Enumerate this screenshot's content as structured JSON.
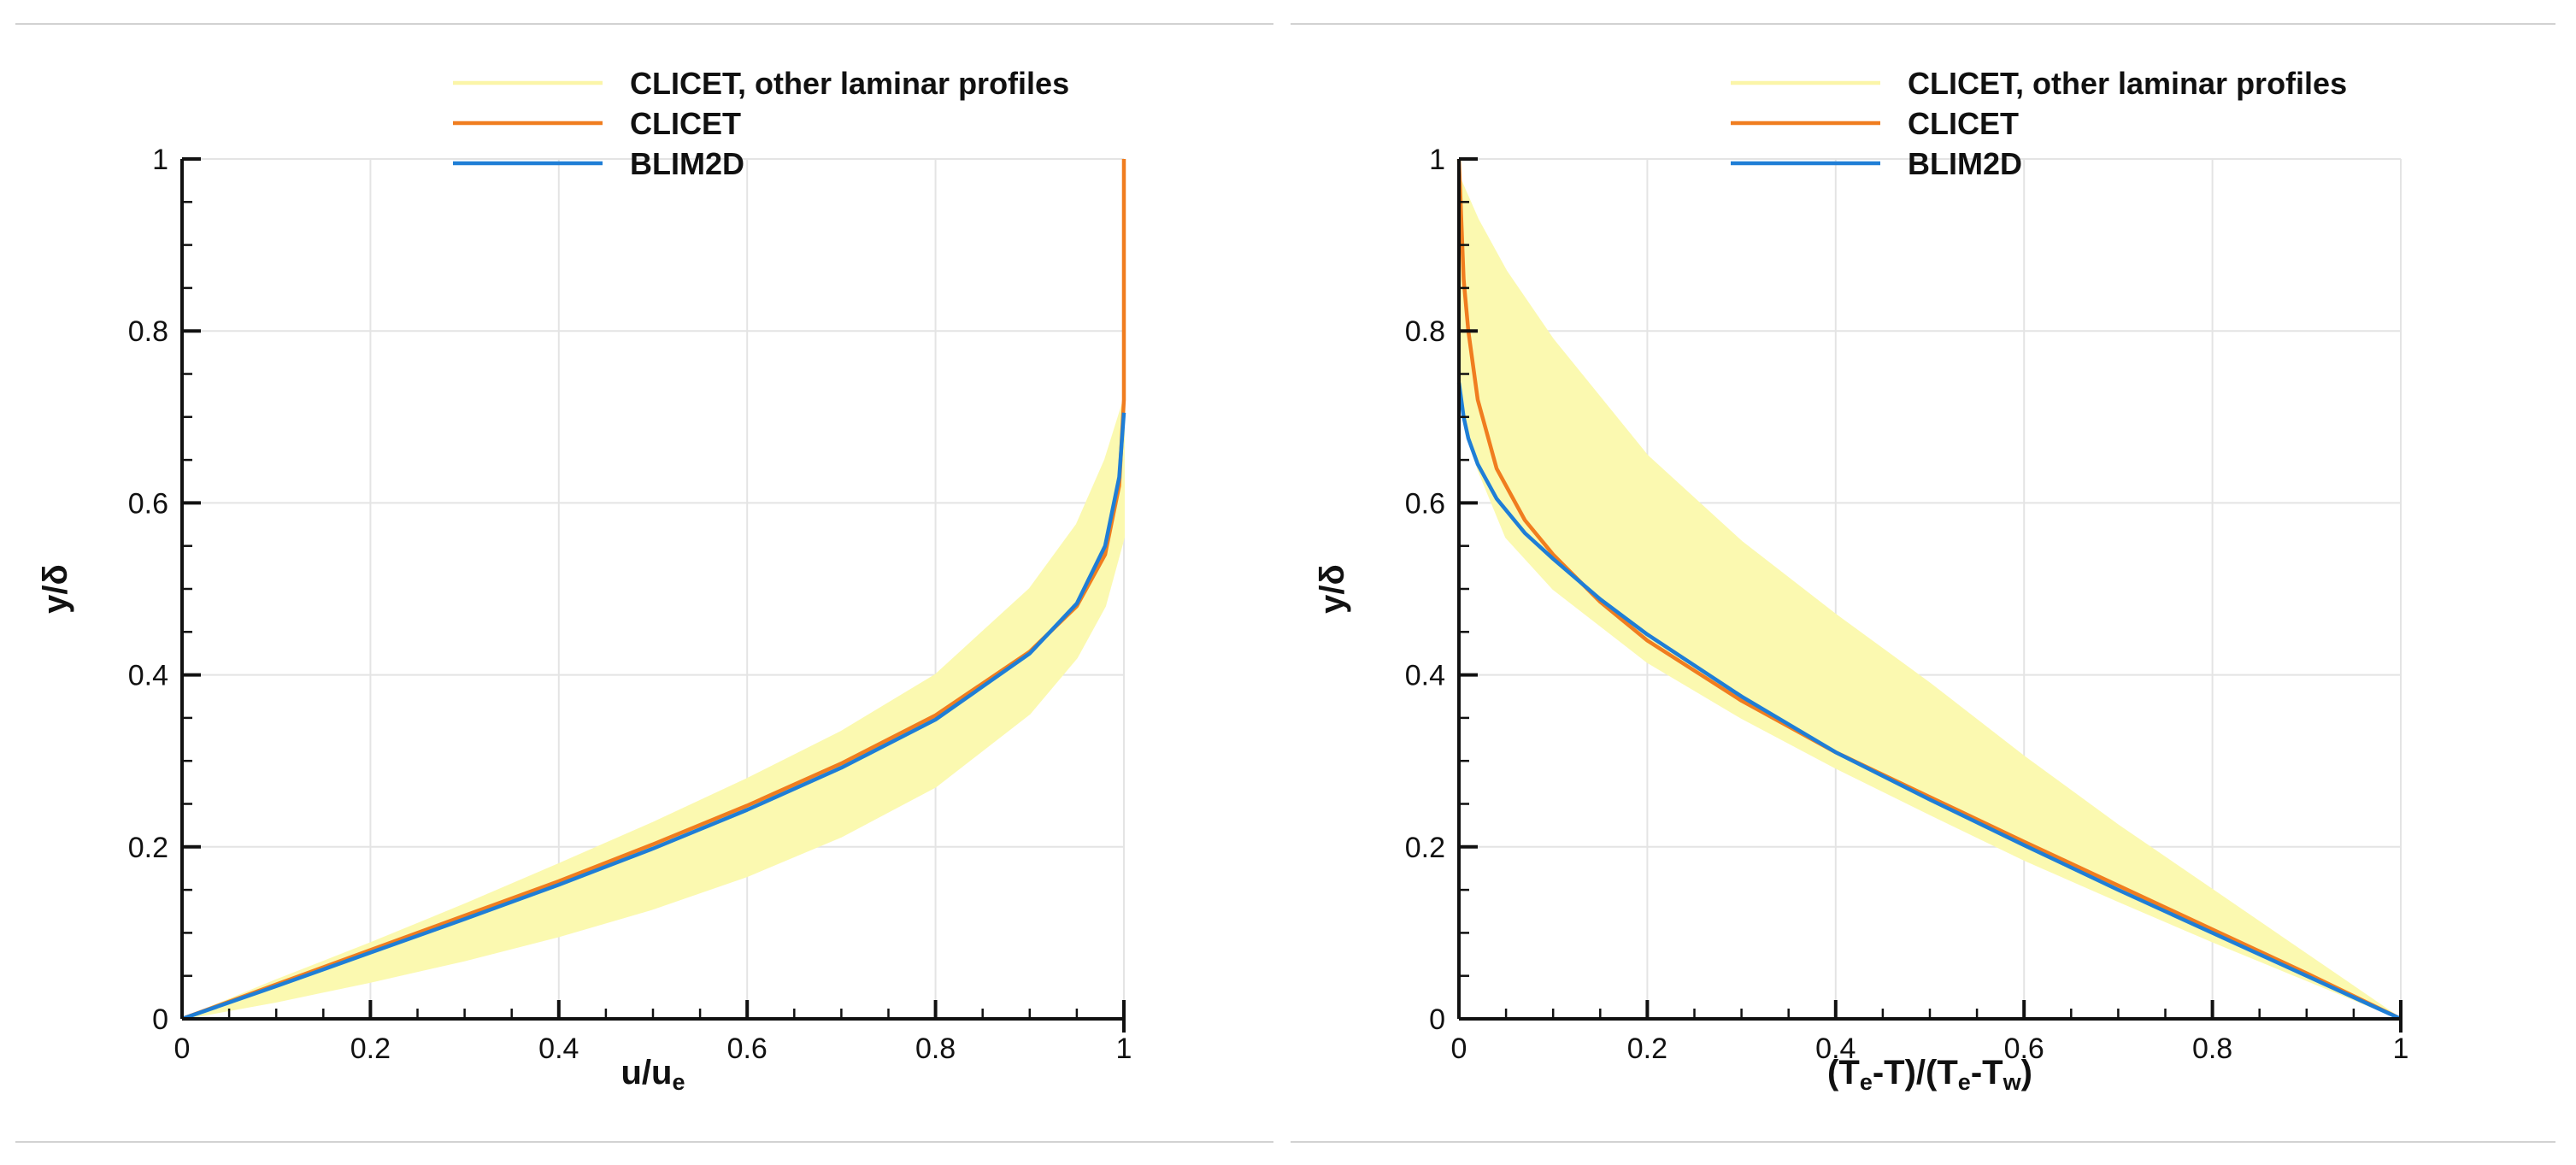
{
  "chart_data": [
    {
      "id": "velocity",
      "type": "line",
      "xlabel": "u/u",
      "xlabel_sub": "e",
      "ylabel": "y/δ",
      "xlim": [
        0,
        1
      ],
      "ylim": [
        0,
        1
      ],
      "xticks": [
        0,
        0.2,
        0.4,
        0.6,
        0.8,
        1
      ],
      "yticks": [
        0,
        0.2,
        0.4,
        0.6,
        0.8,
        1
      ],
      "xtick_labels": [
        "0",
        "0.2",
        "0.4",
        "0.6",
        "0.8",
        "1"
      ],
      "ytick_labels": [
        "0",
        "0.2",
        "0.4",
        "0.6",
        "0.8",
        "1"
      ],
      "grid": true,
      "legend": [
        {
          "label": "CLICET, other laminar profiles",
          "color": "#fbf5a8"
        },
        {
          "label": "CLICET",
          "color": "#f07d1f"
        },
        {
          "label": "BLIM2D",
          "color": "#1f7ed6"
        }
      ],
      "band": {
        "name": "CLICET, other laminar profiles",
        "color": "#fbf9b0",
        "upper": [
          [
            0,
            0
          ],
          [
            0.1,
            0.045
          ],
          [
            0.2,
            0.088
          ],
          [
            0.3,
            0.133
          ],
          [
            0.4,
            0.18
          ],
          [
            0.5,
            0.228
          ],
          [
            0.6,
            0.279
          ],
          [
            0.7,
            0.334
          ],
          [
            0.8,
            0.4
          ],
          [
            0.9,
            0.5
          ],
          [
            0.95,
            0.575
          ],
          [
            0.98,
            0.65
          ],
          [
            1.0,
            0.72
          ]
        ],
        "lower": [
          [
            0,
            0
          ],
          [
            0.1,
            0.02
          ],
          [
            0.2,
            0.043
          ],
          [
            0.3,
            0.068
          ],
          [
            0.4,
            0.096
          ],
          [
            0.5,
            0.128
          ],
          [
            0.6,
            0.166
          ],
          [
            0.7,
            0.212
          ],
          [
            0.8,
            0.27
          ],
          [
            0.9,
            0.355
          ],
          [
            0.95,
            0.42
          ],
          [
            0.98,
            0.48
          ],
          [
            1.0,
            0.56
          ]
        ]
      },
      "series": [
        {
          "name": "CLICET",
          "color": "#f07d1f",
          "x": [
            0,
            0.1,
            0.2,
            0.3,
            0.4,
            0.5,
            0.6,
            0.7,
            0.8,
            0.9,
            0.95,
            0.98,
            0.995,
            1.0,
            1.0
          ],
          "y": [
            0,
            0.04,
            0.08,
            0.12,
            0.16,
            0.203,
            0.248,
            0.297,
            0.353,
            0.427,
            0.48,
            0.54,
            0.62,
            0.72,
            1.0
          ]
        },
        {
          "name": "BLIM2D",
          "color": "#1f7ed6",
          "x": [
            0,
            0.1,
            0.2,
            0.3,
            0.4,
            0.5,
            0.6,
            0.7,
            0.8,
            0.9,
            0.95,
            0.98,
            0.995,
            1.0
          ],
          "y": [
            0,
            0.038,
            0.077,
            0.116,
            0.156,
            0.198,
            0.243,
            0.292,
            0.348,
            0.425,
            0.483,
            0.55,
            0.63,
            0.705
          ]
        }
      ]
    },
    {
      "id": "temperature",
      "type": "line",
      "xlabel_parts": [
        {
          "text": "(T",
          "sub": false
        },
        {
          "text": "e",
          "sub": true
        },
        {
          "text": "-T)/(T",
          "sub": false
        },
        {
          "text": "e",
          "sub": true
        },
        {
          "text": "-T",
          "sub": false
        },
        {
          "text": "w",
          "sub": true
        },
        {
          "text": ")",
          "sub": false
        }
      ],
      "ylabel": "y/δ",
      "xlim": [
        0,
        1
      ],
      "ylim": [
        0,
        1
      ],
      "xticks": [
        0,
        0.2,
        0.4,
        0.6,
        0.8,
        1
      ],
      "yticks": [
        0,
        0.2,
        0.4,
        0.6,
        0.8,
        1
      ],
      "xtick_labels": [
        "0",
        "0.2",
        "0.4",
        "0.6",
        "0.8",
        "1"
      ],
      "ytick_labels": [
        "0",
        "0.2",
        "0.4",
        "0.6",
        "0.8",
        "1"
      ],
      "grid": true,
      "legend": [
        {
          "label": "CLICET, other laminar profiles",
          "color": "#fbf5a8"
        },
        {
          "label": "CLICET",
          "color": "#f07d1f"
        },
        {
          "label": "BLIM2D",
          "color": "#1f7ed6"
        }
      ],
      "band": {
        "name": "CLICET, other laminar profiles",
        "color": "#fbf9b0",
        "upper": [
          [
            0,
            0.98
          ],
          [
            0.02,
            0.93
          ],
          [
            0.05,
            0.87
          ],
          [
            0.1,
            0.79
          ],
          [
            0.2,
            0.655
          ],
          [
            0.3,
            0.555
          ],
          [
            0.4,
            0.47
          ],
          [
            0.5,
            0.39
          ],
          [
            0.6,
            0.305
          ],
          [
            0.7,
            0.225
          ],
          [
            0.8,
            0.15
          ],
          [
            0.9,
            0.075
          ],
          [
            1.0,
            0
          ]
        ],
        "lower": [
          [
            0,
            0.74
          ],
          [
            0.02,
            0.64
          ],
          [
            0.05,
            0.56
          ],
          [
            0.1,
            0.5
          ],
          [
            0.2,
            0.415
          ],
          [
            0.3,
            0.35
          ],
          [
            0.4,
            0.292
          ],
          [
            0.5,
            0.238
          ],
          [
            0.6,
            0.185
          ],
          [
            0.7,
            0.137
          ],
          [
            0.8,
            0.09
          ],
          [
            0.9,
            0.045
          ],
          [
            1.0,
            0
          ]
        ]
      },
      "series": [
        {
          "name": "CLICET",
          "color": "#f07d1f",
          "x": [
            0,
            0.005,
            0.01,
            0.02,
            0.04,
            0.07,
            0.1,
            0.15,
            0.2,
            0.3,
            0.4,
            0.5,
            0.6,
            0.7,
            0.8,
            0.9,
            1.0
          ],
          "y": [
            1.0,
            0.86,
            0.8,
            0.72,
            0.64,
            0.58,
            0.54,
            0.485,
            0.44,
            0.37,
            0.31,
            0.258,
            0.206,
            0.155,
            0.104,
            0.053,
            0
          ]
        },
        {
          "name": "BLIM2D",
          "color": "#1f7ed6",
          "x": [
            0,
            0.005,
            0.01,
            0.02,
            0.04,
            0.07,
            0.1,
            0.15,
            0.2,
            0.3,
            0.4,
            0.5,
            0.6,
            0.7,
            0.8,
            0.9,
            1.0
          ],
          "y": [
            0.74,
            0.7,
            0.675,
            0.645,
            0.605,
            0.565,
            0.535,
            0.488,
            0.447,
            0.375,
            0.31,
            0.255,
            0.202,
            0.15,
            0.1,
            0.05,
            0
          ]
        }
      ]
    }
  ]
}
